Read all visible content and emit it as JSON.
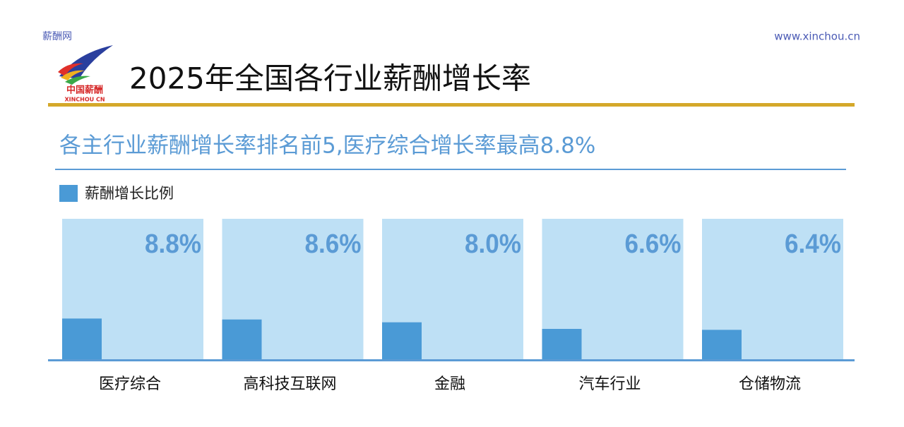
{
  "header": {
    "site_name": "薪酬网",
    "url": "www.xinchou.cn",
    "logo_text": "中国薪酬",
    "logo_subtext": "XINCHOU CN"
  },
  "chart_data": {
    "type": "bar",
    "title": "2025年全国各行业薪酬增长率",
    "subtitle": "各主行业薪酬增长率排名前5,医疗综合增长率最高8.8%",
    "categories": [
      "医疗综合",
      "高科技互联网",
      "金融",
      "汽车行业",
      "仓储物流"
    ],
    "series": [
      {
        "name": "薪酬增长比例",
        "color": "#4a9ad6",
        "values": [
          8.8,
          8.6,
          8.0,
          6.6,
          6.4
        ],
        "value_labels": [
          "8.8%",
          "8.6%",
          "8.0%",
          "6.6%",
          "6.4%"
        ]
      }
    ],
    "ylim": [
      0,
      30
    ],
    "panel_color": "#bee0f5",
    "label_color": "#5b9bd5"
  }
}
